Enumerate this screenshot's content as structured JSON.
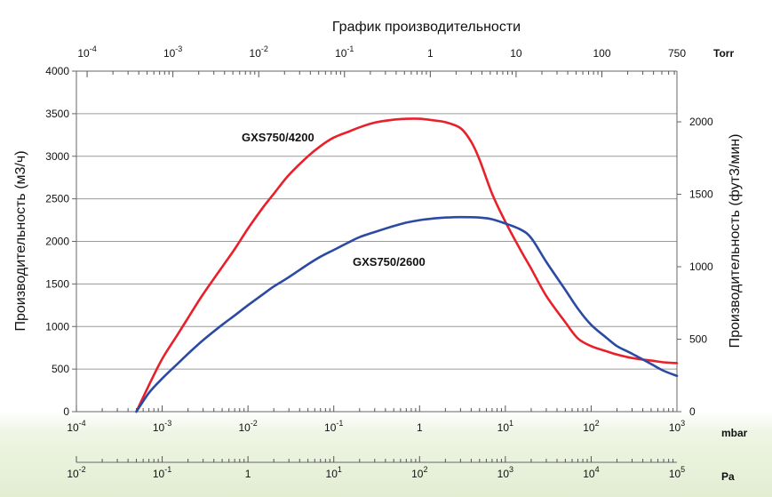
{
  "colors": {
    "series_4200": "#e8202a",
    "series_2600": "#2c4aa3",
    "grid": "#9a9a9a",
    "bottom_band": "#e9f2dc"
  },
  "chart_data": {
    "type": "line",
    "title": "График производительности",
    "ylabel_left": "Производительность (м3/ч)",
    "ylabel_right": "Производительность (фут3/мин)",
    "xscale": "log",
    "xlim_mbar": [
      0.0001,
      1000
    ],
    "ylim": [
      0,
      4000
    ],
    "ylim_right": [
      0,
      2350
    ],
    "grid": true,
    "units": {
      "top": "Torr",
      "bottom": "mbar",
      "pa": "Pa"
    },
    "left_ticks": [
      "0",
      "500",
      "1000",
      "1500",
      "2000",
      "2500",
      "3000",
      "3500",
      "4000"
    ],
    "right_ticks": [
      "0",
      "500",
      "1000",
      "1500",
      "2000"
    ],
    "top_ticks": [
      {
        "base": "10",
        "exp": "-4",
        "value": 0.0001
      },
      {
        "base": "10",
        "exp": "-3",
        "value": 0.001
      },
      {
        "base": "10",
        "exp": "-2",
        "value": 0.01
      },
      {
        "base": "10",
        "exp": "-1",
        "value": 0.1
      },
      {
        "base": "1",
        "exp": "",
        "value": 1
      },
      {
        "base": "10",
        "exp": "",
        "value": 10
      },
      {
        "base": "100",
        "exp": "",
        "value": 100
      },
      {
        "base": "750",
        "exp": "",
        "value": 750
      }
    ],
    "bottom_ticks": [
      {
        "base": "10",
        "exp": "-4",
        "value": 0.0001
      },
      {
        "base": "10",
        "exp": "-3",
        "value": 0.001
      },
      {
        "base": "10",
        "exp": "-2",
        "value": 0.01
      },
      {
        "base": "10",
        "exp": "-1",
        "value": 0.1
      },
      {
        "base": "1",
        "exp": "",
        "value": 1
      },
      {
        "base": "10",
        "exp": "1",
        "value": 10
      },
      {
        "base": "10",
        "exp": "2",
        "value": 100
      },
      {
        "base": "10",
        "exp": "3",
        "value": 1000
      }
    ],
    "pa_ticks": [
      {
        "base": "10",
        "exp": "-2",
        "value": 0.01
      },
      {
        "base": "10",
        "exp": "-1",
        "value": 0.1
      },
      {
        "base": "1",
        "exp": "",
        "value": 1
      },
      {
        "base": "10",
        "exp": "1",
        "value": 10
      },
      {
        "base": "10",
        "exp": "2",
        "value": 100
      },
      {
        "base": "10",
        "exp": "3",
        "value": 1000
      },
      {
        "base": "10",
        "exp": "4",
        "value": 10000
      },
      {
        "base": "10",
        "exp": "5",
        "value": 100000
      }
    ],
    "series": [
      {
        "name": "GXS750/4200",
        "color": "#e8202a",
        "x": [
          0.0005,
          0.0007,
          0.001,
          0.0015,
          0.002,
          0.003,
          0.005,
          0.007,
          0.01,
          0.015,
          0.02,
          0.03,
          0.05,
          0.07,
          0.1,
          0.15,
          0.2,
          0.3,
          0.5,
          0.7,
          1,
          1.5,
          2,
          3,
          4,
          5,
          7,
          10,
          15,
          20,
          30,
          50,
          70,
          100,
          150,
          200,
          300,
          500,
          700,
          1000
        ],
        "y": [
          0,
          310,
          620,
          900,
          1100,
          1380,
          1700,
          1910,
          2150,
          2400,
          2560,
          2780,
          3000,
          3120,
          3220,
          3290,
          3340,
          3395,
          3430,
          3440,
          3440,
          3420,
          3400,
          3330,
          3170,
          2960,
          2560,
          2230,
          1900,
          1680,
          1360,
          1050,
          860,
          770,
          710,
          670,
          630,
          600,
          580,
          570
        ]
      },
      {
        "name": "GXS750/2600",
        "color": "#2c4aa3",
        "x": [
          0.0005,
          0.0007,
          0.001,
          0.0015,
          0.002,
          0.003,
          0.005,
          0.007,
          0.01,
          0.015,
          0.02,
          0.03,
          0.05,
          0.07,
          0.1,
          0.15,
          0.2,
          0.3,
          0.5,
          0.7,
          1,
          1.5,
          2,
          3,
          5,
          7,
          10,
          15,
          20,
          30,
          50,
          70,
          100,
          150,
          200,
          300,
          500,
          700,
          1000
        ],
        "y": [
          0,
          220,
          390,
          560,
          680,
          840,
          1020,
          1130,
          1250,
          1380,
          1470,
          1580,
          1730,
          1820,
          1900,
          1990,
          2050,
          2110,
          2180,
          2220,
          2250,
          2270,
          2280,
          2285,
          2280,
          2260,
          2210,
          2140,
          2040,
          1760,
          1430,
          1210,
          1020,
          870,
          770,
          680,
          560,
          480,
          420
        ]
      }
    ]
  }
}
